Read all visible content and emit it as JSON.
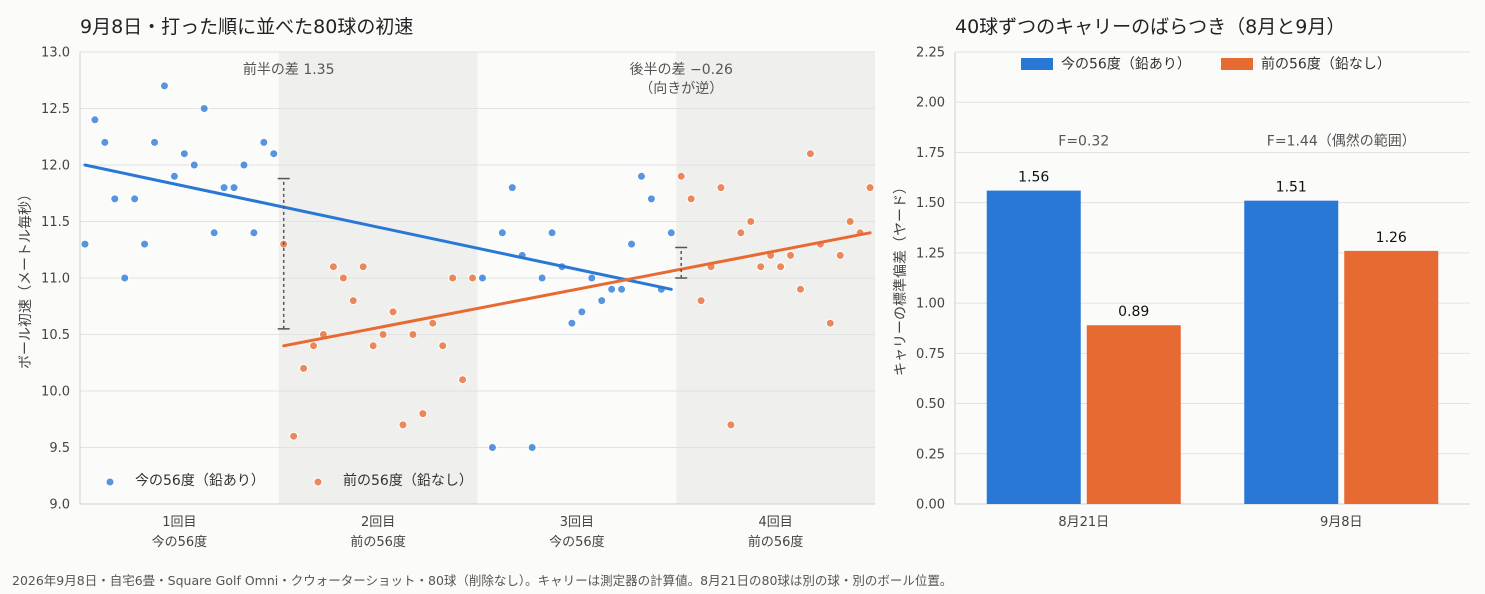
{
  "colors": {
    "blue": "#2a78d6",
    "orange": "#e86a33",
    "shade": "#efefed",
    "grid": "#e2e2e2",
    "gap": "#555555"
  },
  "footer": "2026年9月8日・自宅6畳・Square Golf Omni・クウォーターショット・80球（削除なし）。キャリーは測定器の計算値。8月21日の80球は別の球・別のボール位置。",
  "chart_data": [
    {
      "type": "scatter",
      "title": "9月8日・打った順に並べた80球の初速",
      "ylabel": "ボール初速（メートル毎秒）",
      "ylim": [
        9.0,
        13.0
      ],
      "yticks": [
        "9.0",
        "9.5",
        "10.0",
        "10.5",
        "11.0",
        "11.5",
        "12.0",
        "12.5",
        "13.0"
      ],
      "x_range": [
        1,
        80
      ],
      "groups": [
        {
          "line1": "1回目",
          "line2": "今の56度",
          "shaded": false
        },
        {
          "line1": "2回目",
          "line2": "前の56度",
          "shaded": true
        },
        {
          "line1": "3回目",
          "line2": "今の56度",
          "shaded": false
        },
        {
          "line1": "4回目",
          "line2": "前の56度",
          "shaded": true
        }
      ],
      "series": [
        {
          "name": "今の56度（鉛あり）",
          "color": "#2a78d6",
          "x": [
            1,
            2,
            3,
            4,
            5,
            6,
            7,
            8,
            9,
            10,
            11,
            12,
            13,
            14,
            15,
            16,
            17,
            18,
            19,
            20,
            41,
            42,
            43,
            44,
            45,
            46,
            47,
            48,
            49,
            50,
            51,
            52,
            53,
            54,
            55,
            56,
            57,
            58,
            59,
            60
          ],
          "y": [
            11.3,
            12.4,
            12.2,
            11.7,
            11.0,
            11.7,
            11.3,
            12.2,
            12.7,
            11.9,
            12.1,
            12.0,
            12.5,
            11.4,
            11.8,
            11.8,
            12.0,
            11.4,
            12.2,
            12.1,
            11.0,
            9.5,
            11.4,
            11.8,
            11.2,
            9.5,
            11.0,
            11.4,
            11.1,
            10.6,
            10.7,
            11.0,
            10.8,
            10.9,
            10.9,
            11.3,
            11.9,
            11.7,
            10.9,
            11.4
          ]
        },
        {
          "name": "前の56度（鉛なし）",
          "color": "#e86a33",
          "x": [
            21,
            22,
            23,
            24,
            25,
            26,
            27,
            28,
            29,
            30,
            31,
            32,
            33,
            34,
            35,
            36,
            37,
            38,
            39,
            40,
            61,
            62,
            63,
            64,
            65,
            66,
            67,
            68,
            69,
            70,
            71,
            72,
            73,
            74,
            75,
            76,
            77,
            78,
            79,
            80
          ],
          "y": [
            11.3,
            9.6,
            10.2,
            10.4,
            10.5,
            11.1,
            11.0,
            10.8,
            11.1,
            10.4,
            10.5,
            10.7,
            9.7,
            10.5,
            9.8,
            10.6,
            10.4,
            11.0,
            10.1,
            11.0,
            11.9,
            11.7,
            10.8,
            11.1,
            11.8,
            9.7,
            11.4,
            11.5,
            11.1,
            11.2,
            11.1,
            11.2,
            10.9,
            12.1,
            11.3,
            10.6,
            11.2,
            11.5,
            11.4,
            11.8
          ]
        }
      ],
      "trendlines": [
        {
          "series": "今の56度（鉛あり）",
          "x": [
            1,
            60
          ],
          "y": [
            12.0,
            10.9
          ]
        },
        {
          "series": "前の56度（鉛なし）",
          "x": [
            21,
            80
          ],
          "y": [
            10.4,
            11.4
          ]
        }
      ],
      "gaps": [
        {
          "x": 20.5,
          "y": [
            10.55,
            11.88
          ]
        },
        {
          "x": 60.5,
          "y": [
            11.0,
            11.27
          ]
        }
      ],
      "annotations": [
        {
          "text": "前半の差 1.35",
          "x": 21,
          "y": 12.85
        },
        {
          "text": "後半の差 −0.26",
          "x": 60.5,
          "y": 12.85
        },
        {
          "text": "（向きが逆）",
          "x": 60.5,
          "y": 12.68
        }
      ],
      "legend": {
        "position": "bottom-left",
        "entries": [
          "今の56度（鉛あり）",
          "前の56度（鉛なし）"
        ]
      }
    },
    {
      "type": "bar",
      "title": "40球ずつのキャリーのばらつき（8月と9月）",
      "ylabel": "キャリーの標準偏差（ヤード）",
      "ylim": [
        0,
        2.25
      ],
      "yticks": [
        "0.00",
        "0.25",
        "0.50",
        "0.75",
        "1.00",
        "1.25",
        "1.50",
        "1.75",
        "2.00",
        "2.25"
      ],
      "categories": [
        "8月21日",
        "9月8日"
      ],
      "series": [
        {
          "name": "今の56度（鉛あり）",
          "color": "#2a78d6",
          "values": [
            1.56,
            1.51
          ],
          "labels": [
            "1.56",
            "1.51"
          ]
        },
        {
          "name": "前の56度（鉛なし）",
          "color": "#e86a33",
          "values": [
            0.89,
            1.26
          ],
          "labels": [
            "0.89",
            "1.26"
          ]
        }
      ],
      "annotations": [
        {
          "text": "F=0.32",
          "category": 0,
          "y": 1.81
        },
        {
          "text": "F=1.44（偶然の範囲）",
          "category": 1,
          "y": 1.81
        }
      ],
      "legend": {
        "position": "top-center",
        "entries": [
          "今の56度（鉛あり）",
          "前の56度（鉛なし）"
        ]
      }
    }
  ]
}
